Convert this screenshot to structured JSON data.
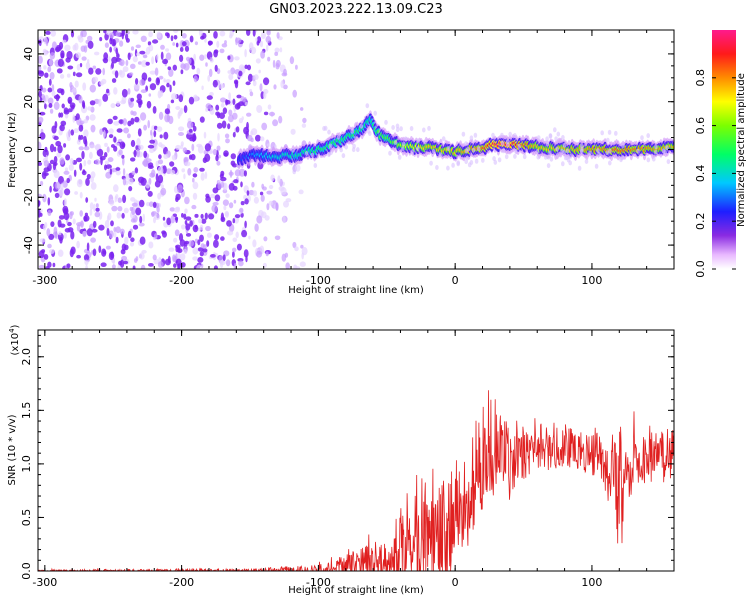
{
  "figure_title": "GN03.2023.222.13.09.C23",
  "colors": {
    "snr_line": "#e02020",
    "scatter_purple": "#7a22ee",
    "axis": "#000000"
  },
  "chart_data": [
    {
      "type": "heatmap",
      "xlabel": "Height of straight line (km)",
      "ylabel": "Frequency (Hz)",
      "xlim": [
        -305,
        160
      ],
      "ylim": [
        -50,
        50
      ],
      "xticks": [
        "-300",
        "-200",
        "-100",
        "0",
        "100"
      ],
      "xtick_values": [
        -300,
        -200,
        -100,
        0,
        100
      ],
      "yticks": [
        "40",
        "20",
        "0",
        "-20",
        "-40"
      ],
      "ytick_values": [
        40,
        20,
        0,
        -20,
        -40
      ],
      "colorbar": {
        "label": "Normalized spectral amplitude",
        "range": [
          0,
          1
        ],
        "ticks": [
          "0.0",
          "0.2",
          "0.4",
          "0.6",
          "0.8"
        ],
        "tick_values": [
          0.0,
          0.2,
          0.4,
          0.6,
          0.8
        ],
        "colormap": "rainbow"
      },
      "ridge": {
        "x": [
          -158,
          -145,
          -130,
          -115,
          -100,
          -90,
          -80,
          -70,
          -62,
          -55,
          -48,
          -40,
          -30,
          -20,
          -10,
          0,
          10,
          20,
          30,
          40,
          50,
          60,
          80,
          100,
          120,
          140,
          160
        ],
        "y": [
          -4,
          -2,
          -3,
          -2,
          0,
          2,
          5,
          8,
          12,
          6,
          4,
          2,
          1,
          1,
          0,
          -1,
          0,
          1,
          2,
          2,
          2,
          1,
          0,
          0,
          0,
          0,
          1
        ],
        "amplitude": [
          0.25,
          0.35,
          0.4,
          0.45,
          0.5,
          0.5,
          0.5,
          0.5,
          0.45,
          0.55,
          0.55,
          0.65,
          0.7,
          0.75,
          0.75,
          0.75,
          0.8,
          0.85,
          0.95,
          0.95,
          0.85,
          0.75,
          0.75,
          0.8,
          0.85,
          0.8,
          0.75
        ]
      },
      "noise_region_x": [
        -305,
        -125
      ],
      "noise_amplitude": 0.15
    },
    {
      "type": "line",
      "xlabel": "Height of straight line (km)",
      "ylabel": "SNR (10 * v/v)",
      "exponent_label": "(x10",
      "exponent_power": "4",
      "exponent_close": ")",
      "xlim": [
        -305,
        160
      ],
      "ylim": [
        0,
        2.25
      ],
      "xticks": [
        "-300",
        "-200",
        "-100",
        "0",
        "100"
      ],
      "xtick_values": [
        -300,
        -200,
        -100,
        0,
        100
      ],
      "yticks": [
        "0.0",
        "0.5",
        "1.0",
        "1.5",
        "2.0"
      ],
      "ytick_values": [
        0.0,
        0.5,
        1.0,
        1.5,
        2.0
      ],
      "series": [
        {
          "envelope_x": [
            -305,
            -150,
            -120,
            -100,
            -80,
            -65,
            -50,
            -40,
            -30,
            -20,
            -10,
            0,
            10,
            20,
            25,
            30,
            40,
            50,
            60,
            80,
            100,
            115,
            120,
            125,
            140,
            160
          ],
          "envelope_y": [
            0.01,
            0.02,
            0.04,
            0.08,
            0.15,
            0.3,
            0.2,
            0.6,
            0.8,
            0.9,
            0.8,
            0.95,
            1.1,
            1.4,
            1.7,
            1.5,
            1.3,
            1.3,
            1.35,
            1.35,
            1.3,
            1.2,
            1.3,
            1.25,
            1.25,
            1.3
          ],
          "noise_y": [
            0.01,
            0.02,
            0.03,
            0.08,
            0.12,
            0.2,
            0.15,
            0.4,
            0.5,
            0.55,
            0.5,
            0.45,
            0.45,
            0.5,
            0.5,
            0.4,
            0.3,
            0.22,
            0.2,
            0.2,
            0.22,
            0.3,
            0.6,
            0.3,
            0.22,
            0.2
          ]
        }
      ]
    }
  ]
}
